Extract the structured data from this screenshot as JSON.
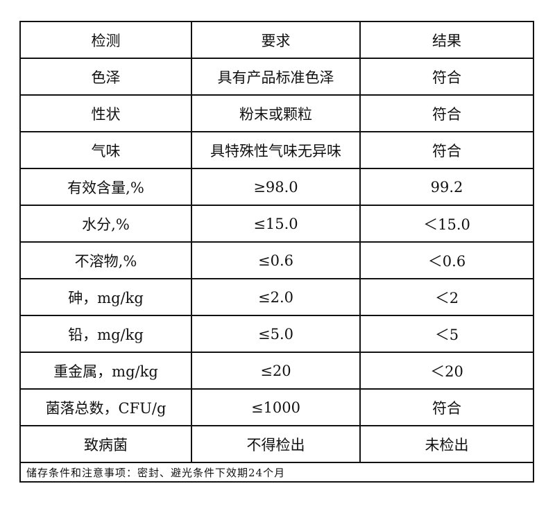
{
  "table": {
    "headers": [
      "检测",
      "要求",
      "结果"
    ],
    "rows": [
      [
        "色泽",
        "具有产品标准色泽",
        "符合"
      ],
      [
        "性状",
        "粉末或颗粒",
        "符合"
      ],
      [
        "气味",
        "具特殊性气味无异味",
        "符合"
      ],
      [
        "有效含量,%",
        "≥98.0",
        "99.2"
      ],
      [
        "水分,%",
        "≤15.0",
        "＜15.0"
      ],
      [
        "不溶物,%",
        "≤0.6",
        "＜0.6"
      ],
      [
        "砷，mg/kg",
        "≤2.0",
        "＜2"
      ],
      [
        "铅，mg/kg",
        "≤5.0",
        "＜5"
      ],
      [
        "重金属，mg/kg",
        "≤20",
        "＜20"
      ],
      [
        "菌落总数，CFU/g",
        "≤1000",
        "符合"
      ],
      [
        "致病菌",
        "不得检出",
        "未检出"
      ]
    ],
    "footer": "储存条件和注意事项：密封、避光条件下效期24个月"
  }
}
